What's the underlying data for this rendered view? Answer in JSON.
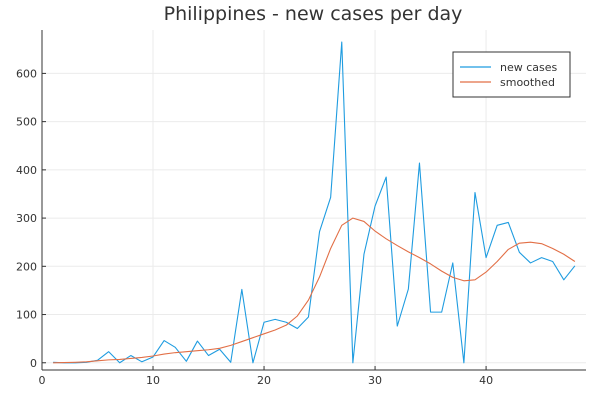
{
  "chart_data": {
    "type": "line",
    "title": "Philippines - new cases per day",
    "xlabel": "",
    "ylabel": "",
    "xlim": [
      0,
      49
    ],
    "ylim": [
      -15,
      690
    ],
    "xticks": [
      0,
      10,
      20,
      30,
      40
    ],
    "yticks": [
      0,
      100,
      200,
      300,
      400,
      500,
      600
    ],
    "grid": true,
    "legend_position": "top-right",
    "x": [
      1,
      2,
      3,
      4,
      5,
      6,
      7,
      8,
      9,
      10,
      11,
      12,
      13,
      14,
      15,
      16,
      17,
      18,
      19,
      20,
      21,
      22,
      23,
      24,
      25,
      26,
      27,
      28,
      29,
      30,
      31,
      32,
      33,
      34,
      35,
      36,
      37,
      38,
      39,
      40,
      41,
      42,
      43,
      44,
      45,
      46,
      47,
      48
    ],
    "series": [
      {
        "name": "new cases",
        "color": "#1f9ce0",
        "values": [
          1,
          0,
          0,
          1,
          5,
          23,
          0,
          15,
          2,
          12,
          46,
          32,
          3,
          45,
          15,
          28,
          1,
          152,
          0,
          84,
          90,
          84,
          71,
          95,
          272,
          343,
          665,
          0,
          225,
          325,
          385,
          76,
          153,
          414,
          105,
          105,
          207,
          0,
          353,
          218,
          285,
          291,
          229,
          207,
          218,
          210,
          172,
          201
        ]
      },
      {
        "name": "smoothed",
        "color": "#e26f46",
        "values": [
          0,
          0.5,
          1,
          2,
          4,
          6,
          7,
          9,
          11,
          14,
          18,
          21,
          23,
          25,
          27,
          30,
          36,
          44,
          52,
          60,
          68,
          78,
          97,
          130,
          178,
          237,
          285,
          300,
          293,
          273,
          257,
          243,
          230,
          218,
          205,
          190,
          177,
          170,
          172,
          188,
          210,
          235,
          248,
          250,
          247,
          237,
          225,
          210
        ]
      }
    ]
  }
}
